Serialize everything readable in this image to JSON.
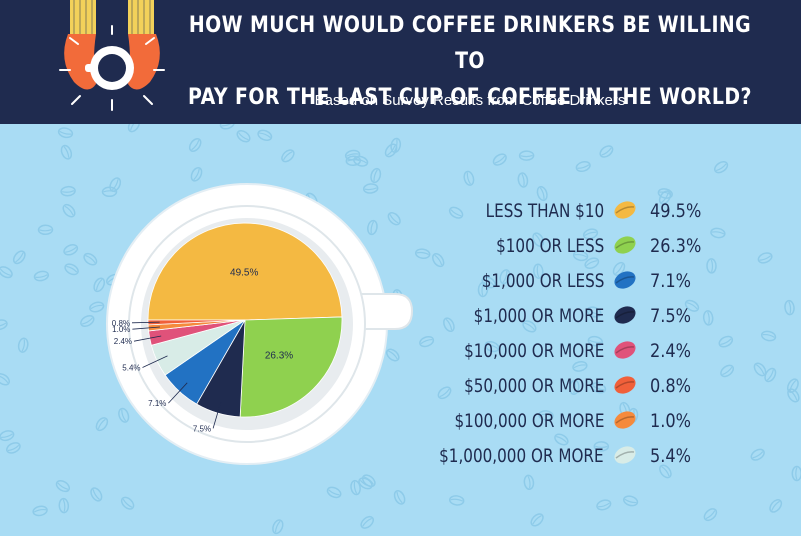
{
  "header": {
    "title_line1": "HOW MUCH WOULD COFFEE DRINKERS BE WILLING TO",
    "title_line2": "PAY FOR THE LAST CUP OF COFFEE IN THE WORLD?",
    "subtitle": "Based on Survey Results from Coffee Drinkers"
  },
  "colors": {
    "header_bg": "#1f2b4f",
    "page_bg": "#a9dcf4",
    "text": "#1f2b4f"
  },
  "chart_data": {
    "type": "pie",
    "title": "HOW MUCH WOULD COFFEE DRINKERS BE WILLING TO PAY FOR THE LAST CUP OF COFFEE IN THE WORLD?",
    "subtitle": "Based on Survey Results from Coffee Drinkers",
    "legend_position": "right",
    "slices": [
      {
        "label": "LESS THAN $10",
        "value": 49.5,
        "display": "49.5%",
        "color": "#f4b942"
      },
      {
        "label": "$100 OR LESS",
        "value": 26.3,
        "display": "26.3%",
        "color": "#8fd14f"
      },
      {
        "label": "$1,000 OR LESS",
        "value": 7.1,
        "display": "7.1%",
        "color": "#2272c3"
      },
      {
        "label": "$1,000 OR MORE",
        "value": 7.5,
        "display": "7.5%",
        "color": "#1f2b4f"
      },
      {
        "label": "$10,000 OR MORE",
        "value": 2.4,
        "display": "2.4%",
        "color": "#e0527a"
      },
      {
        "label": "$50,000 OR MORE",
        "value": 0.8,
        "display": "0.8%",
        "color": "#f0603a"
      },
      {
        "label": "$100,000 OR MORE",
        "value": 1.0,
        "display": "1.0%",
        "color": "#f58a3c"
      },
      {
        "label": "$1,000,000 OR MORE",
        "value": 5.4,
        "display": "5.4%",
        "color": "#d8ece7"
      }
    ],
    "pie_order": [
      0,
      1,
      3,
      2,
      7,
      4,
      6,
      5
    ],
    "pie_labels": [
      "49.5%",
      "26.3%",
      "7.5%",
      "7.1%",
      "5.4%",
      "2.4%",
      "1.0%",
      "0.8%"
    ]
  }
}
